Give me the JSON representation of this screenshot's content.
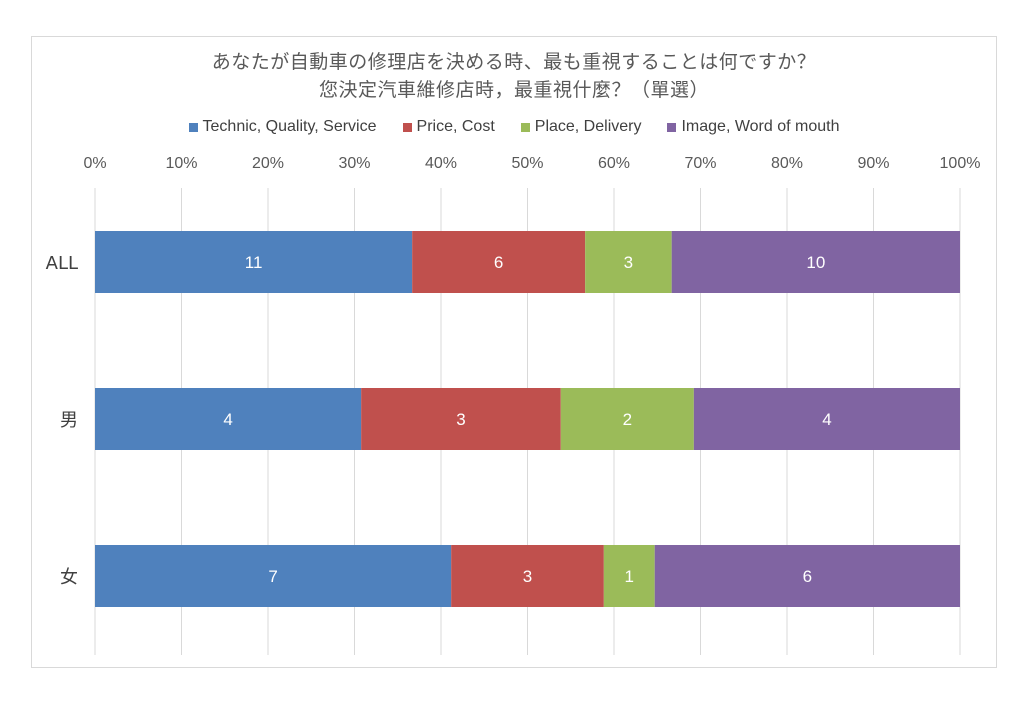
{
  "chart_data": {
    "type": "bar",
    "orientation": "horizontal",
    "stacked": "percent",
    "title": "あなたが自動車の修理店を決める時、最も重視することは何ですか？",
    "subtitle": "您決定汽車維修店時，最重視什麼？（單選）",
    "categories": [
      "ALL",
      "男",
      "女"
    ],
    "series": [
      {
        "name": "Technic, Quality, Service",
        "values": [
          11,
          4,
          7
        ],
        "color": "#4f81bd"
      },
      {
        "name": "Price, Cost",
        "values": [
          6,
          3,
          3
        ],
        "color": "#c0504d"
      },
      {
        "name": "Place, Delivery",
        "values": [
          3,
          2,
          1
        ],
        "color": "#9bbb59"
      },
      {
        "name": "Image, Word of mouth",
        "values": [
          10,
          4,
          6
        ],
        "color": "#8064a2"
      }
    ],
    "x_ticks": [
      "0%",
      "10%",
      "20%",
      "30%",
      "40%",
      "50%",
      "60%",
      "70%",
      "80%",
      "90%",
      "100%"
    ],
    "xlim": [
      0,
      100
    ],
    "x_axis_position": "top",
    "legend_position": "top",
    "grid": true
  }
}
